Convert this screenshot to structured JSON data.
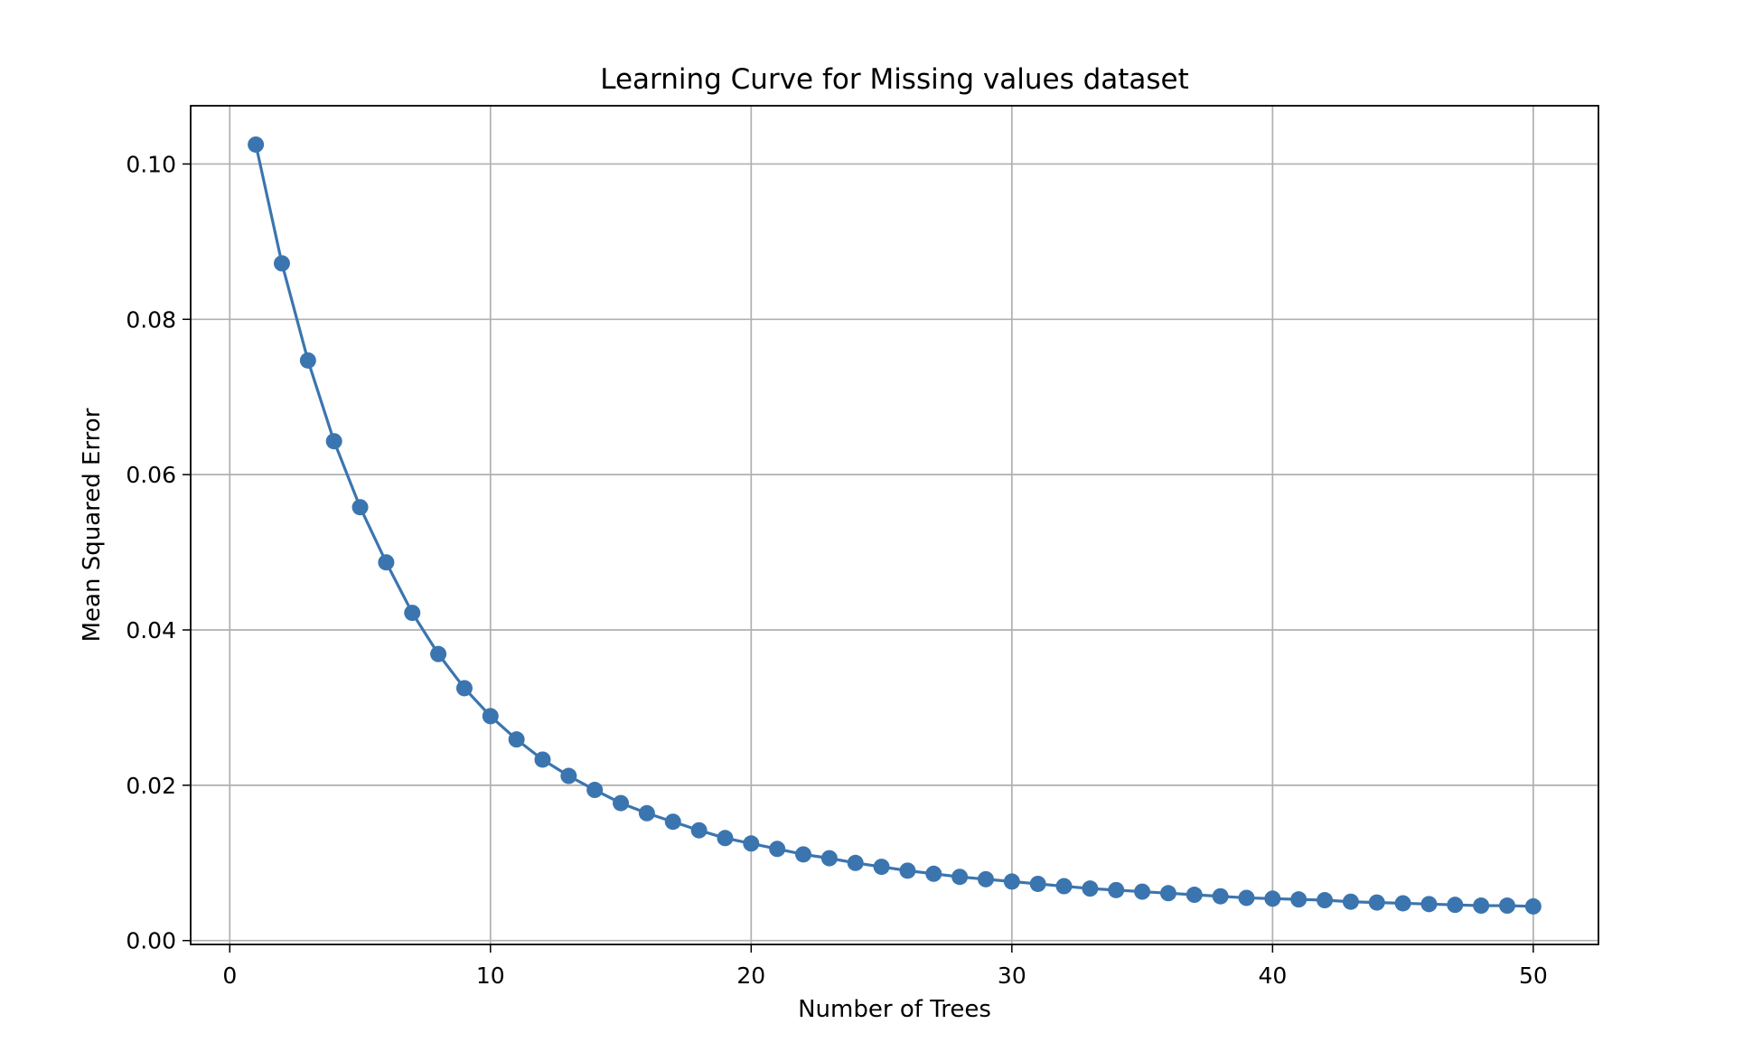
{
  "chart_data": {
    "type": "line",
    "title": "Learning Curve for Missing values dataset",
    "xlabel": "Number of Trees",
    "ylabel": "Mean Squared Error",
    "xlim": [
      -1.5,
      52.5
    ],
    "ylim": [
      -0.0005,
      0.1075
    ],
    "x_ticks": [
      0,
      10,
      20,
      30,
      40,
      50
    ],
    "x_tick_labels": [
      "0",
      "10",
      "20",
      "30",
      "40",
      "50"
    ],
    "y_ticks": [
      0.0,
      0.02,
      0.04,
      0.06,
      0.08,
      0.1
    ],
    "y_tick_labels": [
      "0.00",
      "0.02",
      "0.04",
      "0.06",
      "0.08",
      "0.10"
    ],
    "grid": true,
    "markers": "circle",
    "series": [
      {
        "color": "#3b75af",
        "x": [
          1,
          2,
          3,
          4,
          5,
          6,
          7,
          8,
          9,
          10,
          11,
          12,
          13,
          14,
          15,
          16,
          17,
          18,
          19,
          20,
          21,
          22,
          23,
          24,
          25,
          26,
          27,
          28,
          29,
          30,
          31,
          32,
          33,
          34,
          35,
          36,
          37,
          38,
          39,
          40,
          41,
          42,
          43,
          44,
          45,
          46,
          47,
          48,
          49,
          50
        ],
        "y": [
          0.1025,
          0.0872,
          0.0747,
          0.0643,
          0.0558,
          0.0487,
          0.0422,
          0.0369,
          0.0325,
          0.0289,
          0.0259,
          0.0233,
          0.0212,
          0.0194,
          0.0177,
          0.0164,
          0.0153,
          0.0142,
          0.0132,
          0.0125,
          0.0118,
          0.0111,
          0.0106,
          0.01,
          0.0095,
          0.009,
          0.0086,
          0.0082,
          0.0079,
          0.0076,
          0.0073,
          0.007,
          0.0067,
          0.0065,
          0.0063,
          0.0061,
          0.0059,
          0.0057,
          0.0055,
          0.0054,
          0.0053,
          0.0052,
          0.005,
          0.0049,
          0.0048,
          0.0047,
          0.0046,
          0.0045,
          0.0045,
          0.0044
        ]
      }
    ]
  }
}
